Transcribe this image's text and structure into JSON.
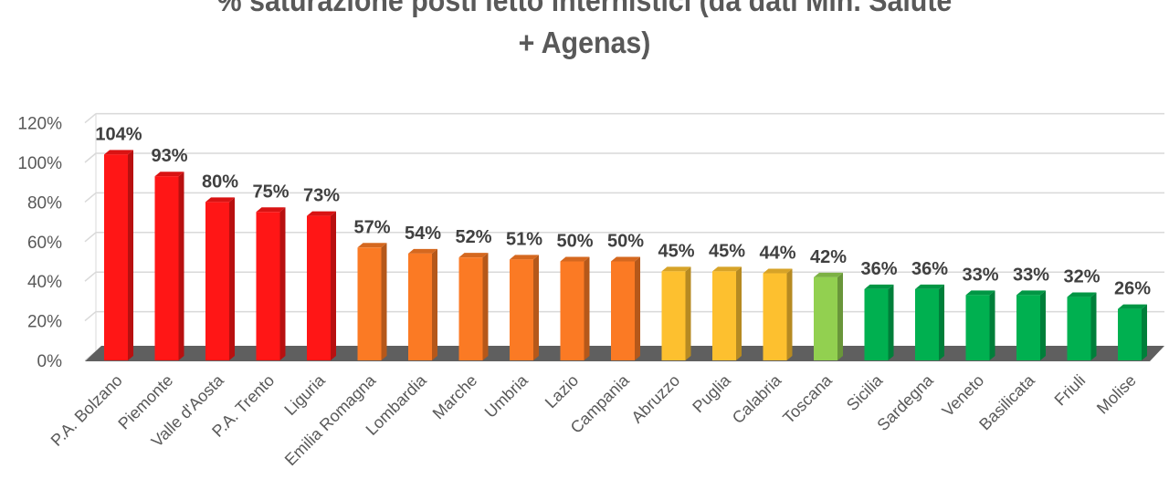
{
  "chart_data": {
    "type": "bar",
    "title_lines": [
      "% saturazione posti letto internistici (da dati Min. Salute",
      "+ Agenas)"
    ],
    "categories": [
      "P.A. Bolzano",
      "Piemonte",
      "Valle d'Aosta",
      "P.A. Trento",
      "Liguria",
      "Emilia Romagna",
      "Lombardia",
      "Marche",
      "Umbria",
      "Lazio",
      "Campania",
      "Abruzzo",
      "Puglia",
      "Calabria",
      "Toscana",
      "Sicilia",
      "Sardegna",
      "Veneto",
      "Basilicata",
      "Friuli",
      "Molise"
    ],
    "values": [
      104,
      93,
      80,
      75,
      73,
      57,
      54,
      52,
      51,
      50,
      50,
      45,
      45,
      44,
      42,
      36,
      36,
      33,
      33,
      32,
      26
    ],
    "data_labels": [
      "104%",
      "93%",
      "80%",
      "75%",
      "73%",
      "57%",
      "54%",
      "52%",
      "51%",
      "50%",
      "50%",
      "45%",
      "45%",
      "44%",
      "42%",
      "36%",
      "36%",
      "33%",
      "33%",
      "32%",
      "26%"
    ],
    "colors": [
      "#ff1616",
      "#ff1616",
      "#ff1616",
      "#ff1616",
      "#ff1616",
      "#fb7a24",
      "#fb7a24",
      "#fb7a24",
      "#fb7a24",
      "#fb7a24",
      "#fb7a24",
      "#fdc02f",
      "#fdc02f",
      "#fdc02f",
      "#92d050",
      "#00b050",
      "#00b050",
      "#00b050",
      "#00b050",
      "#00b050",
      "#00b050"
    ],
    "yticks": [
      "0%",
      "20%",
      "40%",
      "60%",
      "80%",
      "100%",
      "120%"
    ],
    "ylim": [
      0,
      120
    ],
    "xlabel": "",
    "ylabel": "",
    "grid": true,
    "legend": "none"
  }
}
